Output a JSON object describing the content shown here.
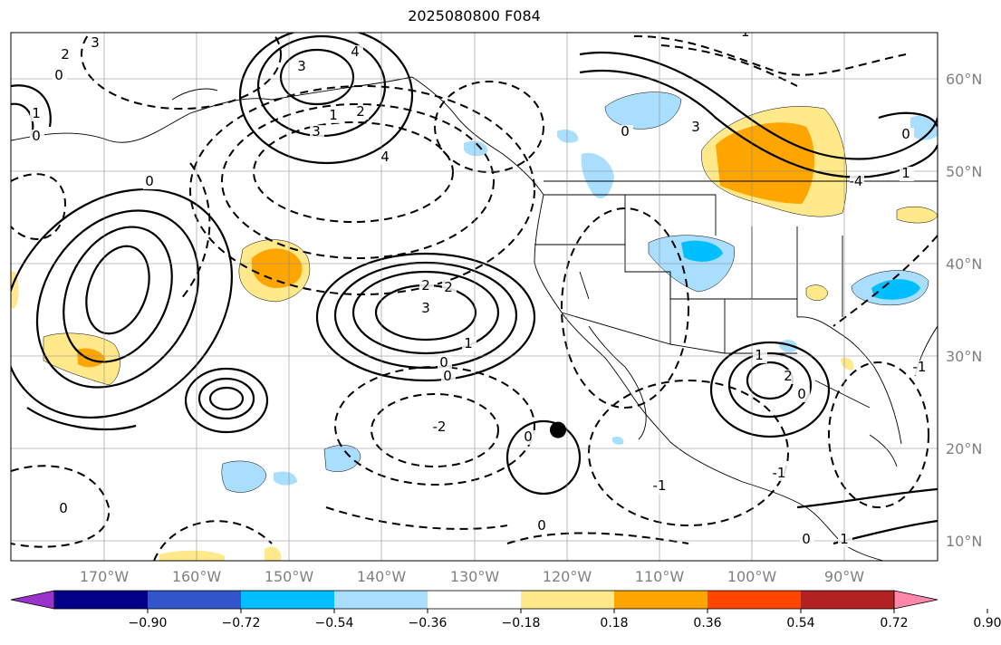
{
  "title": "2025080800 F084",
  "map": {
    "projection": "cylindrical",
    "lon_range": [
      -180,
      -80
    ],
    "lat_range": [
      7,
      64
    ],
    "gridlines": true,
    "lon_labels": [
      "170°W",
      "160°W",
      "150°W",
      "140°W",
      "130°W",
      "120°W",
      "110°W",
      "100°W",
      "90°W"
    ],
    "lat_labels": [
      "60°N",
      "50°N",
      "40°N",
      "30°N",
      "20°N",
      "10°N"
    ],
    "marker": {
      "name": "black-dot",
      "lon": -120.9,
      "lat": 22
    },
    "contour_labels": [
      "3",
      "2",
      "0",
      "1",
      "0",
      "3",
      "4",
      "1",
      "2",
      "3",
      "4",
      "0",
      "2",
      "3",
      "2",
      "1",
      "0",
      "-2",
      "0",
      "0",
      "0",
      "-1",
      "3",
      "0",
      "-1",
      "1",
      "0",
      "-4",
      "0",
      "2",
      "1",
      "0",
      "-1",
      "1",
      "0",
      "-1"
    ]
  },
  "colorbar": {
    "colors": [
      "#9933cc",
      "#000088",
      "#3355cc",
      "#00bfff",
      "#aadeff",
      "#ffffff",
      "#ffe98a",
      "#ffa500",
      "#ff4500",
      "#b22222",
      "#ff88aa"
    ],
    "tick_labels": [
      "−0.90",
      "−0.72",
      "−0.54",
      "−0.36",
      "−0.18",
      "0.18",
      "0.36",
      "0.54",
      "0.72",
      "0.90"
    ],
    "extend": "both"
  }
}
